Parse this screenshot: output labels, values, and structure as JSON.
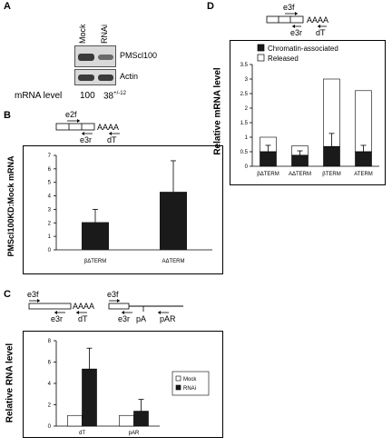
{
  "panelA": {
    "label": "A",
    "lanes": [
      "Mock",
      "RNAi"
    ],
    "blots": [
      "PMScl100",
      "Actin"
    ],
    "mrna_label": "mRNA level",
    "mrna_mock": "100",
    "mrna_rnai": "38",
    "mrna_rnai_err": "+/-12"
  },
  "panelB": {
    "label": "B",
    "primers": {
      "fwd": "e2f",
      "rev": "e3r",
      "dt": "dT",
      "polya": "AAAA"
    },
    "chart_data": {
      "type": "bar",
      "categories": [
        "βΔTERM",
        "AΔTERM"
      ],
      "values": [
        2.05,
        4.3
      ],
      "errors": [
        0.95,
        2.3
      ],
      "ylabel": "PMScl100KD:Mock mRNA",
      "ylim": [
        0,
        7
      ],
      "yticks": [
        0,
        1,
        2,
        3,
        4,
        5,
        6,
        7
      ],
      "grid": false,
      "bar_color": "#1a1a1a"
    }
  },
  "panelC": {
    "label": "C",
    "primers_left": {
      "fwd": "e3f",
      "rev": "e3r",
      "dt": "dT",
      "polya": "AAAA"
    },
    "primers_right": {
      "fwd": "e3f",
      "rev": "e3r",
      "pa": "pA",
      "par": "pAR"
    },
    "chart_data": {
      "type": "bar",
      "categories": [
        "dT",
        "pAR"
      ],
      "series": [
        {
          "name": "Mock",
          "values": [
            1.0,
            1.0
          ],
          "errors": [
            0,
            0
          ],
          "color": "#ffffff"
        },
        {
          "name": "RNAi",
          "values": [
            5.35,
            1.4
          ],
          "errors": [
            1.95,
            1.1
          ],
          "color": "#1a1a1a"
        }
      ],
      "ylabel": "Relative RNA level",
      "ylim": [
        0,
        8
      ],
      "yticks": [
        0,
        2,
        4,
        6,
        8
      ],
      "legend": "right",
      "grid": false
    }
  },
  "panelD": {
    "label": "D",
    "primers": {
      "fwd": "e3f",
      "rev": "e3r",
      "dt": "dT",
      "polya": "AAAA"
    },
    "chart_data": {
      "type": "bar",
      "stacked": true,
      "categories": [
        "βΔTERM",
        "AΔTERM",
        "βTERM",
        "ATERM"
      ],
      "series": [
        {
          "name": "Chromatin-associated",
          "values": [
            0.5,
            0.38,
            0.68,
            0.5
          ],
          "errors": [
            0.22,
            0.15,
            0.45,
            0.22
          ],
          "color": "#1a1a1a"
        },
        {
          "name": "Released",
          "values": [
            0.5,
            0.32,
            2.32,
            2.1
          ],
          "color": "#ffffff"
        }
      ],
      "ylabel": "Relative mRNA level",
      "ylim": [
        0,
        3.5
      ],
      "yticks": [
        "0",
        "0.5",
        "1",
        "1.5",
        "2",
        "2.5",
        "3",
        "3.5"
      ],
      "legend": "top-left",
      "grid": false
    }
  }
}
